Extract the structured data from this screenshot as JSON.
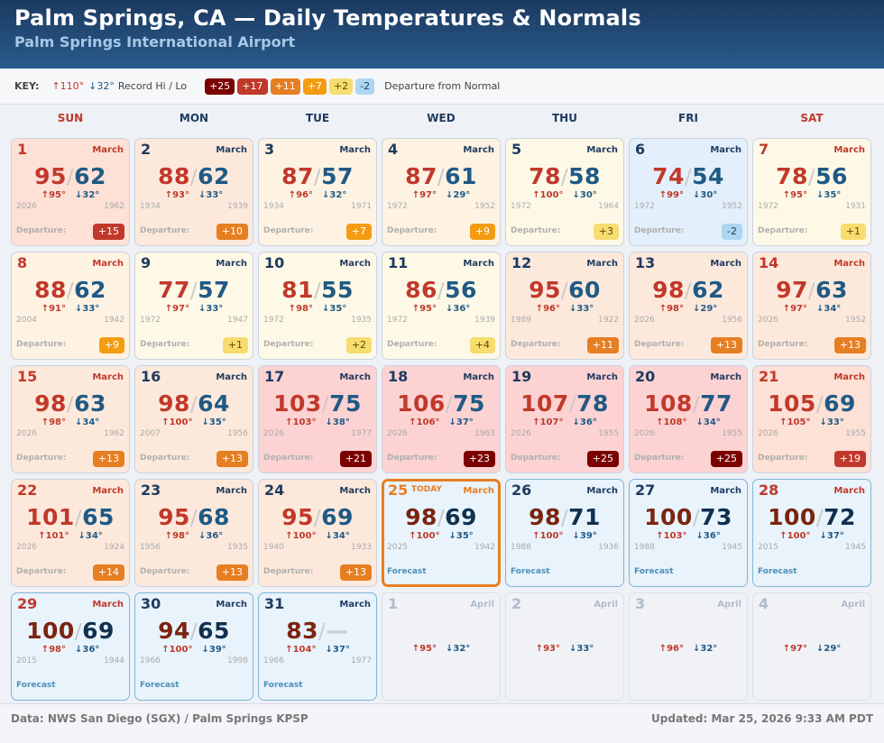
{
  "header": {
    "title": "Palm Springs, CA — Daily Temperatures & Normals",
    "subtitle": "Palm Springs International Airport"
  },
  "key": {
    "label": "KEY:",
    "record_hi": "↑110°",
    "record_lo": "↓32°",
    "record_text": "Record Hi / Lo",
    "departure_legend": [
      {
        "label": "+25",
        "bg": "#7b0000",
        "fg": "#ffffff"
      },
      {
        "label": "+17",
        "bg": "#c0392b",
        "fg": "#ffffff"
      },
      {
        "label": "+11",
        "bg": "#e67e22",
        "fg": "#ffffff"
      },
      {
        "label": "+7",
        "bg": "#f39c12",
        "fg": "#ffffff"
      },
      {
        "label": "+2",
        "bg": "#f7dc6f",
        "fg": "#5a4a00"
      },
      {
        "label": "-2",
        "bg": "#aed6f1",
        "fg": "#1e3a5f"
      }
    ],
    "departure_text": "Departure from Normal"
  },
  "weekdays": [
    "SUN",
    "MON",
    "TUE",
    "WED",
    "THU",
    "FRI",
    "SAT"
  ],
  "labels": {
    "departure": "Departure:",
    "forecast": "Forecast",
    "today": "TODAY"
  },
  "colors": {
    "accent_today": "#e67e22",
    "hi": "#c0392b",
    "lo": "#1f5a85"
  },
  "days": [
    {
      "day": "1",
      "month": "March",
      "hi": "95",
      "lo": "62",
      "rec_hi": "↑95°",
      "rec_lo": "↓32°",
      "yr_hi": "2026",
      "yr_lo": "1962",
      "dep": "+15",
      "dep_bg": "#c0392b",
      "dep_fg": "#ffffff",
      "bg": "#fde0d6",
      "type": "past"
    },
    {
      "day": "2",
      "month": "March",
      "hi": "88",
      "lo": "62",
      "rec_hi": "↑93°",
      "rec_lo": "↓33°",
      "yr_hi": "1934",
      "yr_lo": "1939",
      "dep": "+10",
      "dep_bg": "#e67e22",
      "dep_fg": "#ffffff",
      "bg": "#fde9dc",
      "type": "past"
    },
    {
      "day": "3",
      "month": "March",
      "hi": "87",
      "lo": "57",
      "rec_hi": "↑96°",
      "rec_lo": "↓32°",
      "yr_hi": "1934",
      "yr_lo": "1971",
      "dep": "+7",
      "dep_bg": "#f39c12",
      "dep_fg": "#ffffff",
      "bg": "#fef2e3",
      "type": "past"
    },
    {
      "day": "4",
      "month": "March",
      "hi": "87",
      "lo": "61",
      "rec_hi": "↑97°",
      "rec_lo": "↓29°",
      "yr_hi": "1972",
      "yr_lo": "1952",
      "dep": "+9",
      "dep_bg": "#f39c12",
      "dep_fg": "#ffffff",
      "bg": "#fef2e3",
      "type": "past"
    },
    {
      "day": "5",
      "month": "March",
      "hi": "78",
      "lo": "58",
      "rec_hi": "↑100°",
      "rec_lo": "↓30°",
      "yr_hi": "1972",
      "yr_lo": "1964",
      "dep": "+3",
      "dep_bg": "#f7dc6f",
      "dep_fg": "#5a4a00",
      "bg": "#fef9e7",
      "type": "past"
    },
    {
      "day": "6",
      "month": "March",
      "hi": "74",
      "lo": "54",
      "rec_hi": "↑99°",
      "rec_lo": "↓30°",
      "yr_hi": "1972",
      "yr_lo": "1952",
      "dep": "-2",
      "dep_bg": "#aed6f1",
      "dep_fg": "#1e3a5f",
      "bg": "#e3effb",
      "type": "past"
    },
    {
      "day": "7",
      "month": "March",
      "hi": "78",
      "lo": "56",
      "rec_hi": "↑95°",
      "rec_lo": "↓35°",
      "yr_hi": "1972",
      "yr_lo": "1931",
      "dep": "+1",
      "dep_bg": "#f7dc6f",
      "dep_fg": "#5a4a00",
      "bg": "#fef9e7",
      "type": "past"
    },
    {
      "day": "8",
      "month": "March",
      "hi": "88",
      "lo": "62",
      "rec_hi": "↑91°",
      "rec_lo": "↓33°",
      "yr_hi": "2004",
      "yr_lo": "1942",
      "dep": "+9",
      "dep_bg": "#f39c12",
      "dep_fg": "#ffffff",
      "bg": "#fef2e3",
      "type": "past"
    },
    {
      "day": "9",
      "month": "March",
      "hi": "77",
      "lo": "57",
      "rec_hi": "↑97°",
      "rec_lo": "↓33°",
      "yr_hi": "1972",
      "yr_lo": "1947",
      "dep": "+1",
      "dep_bg": "#f7dc6f",
      "dep_fg": "#5a4a00",
      "bg": "#fef9e7",
      "type": "past"
    },
    {
      "day": "10",
      "month": "March",
      "hi": "81",
      "lo": "55",
      "rec_hi": "↑98°",
      "rec_lo": "↓35°",
      "yr_hi": "1972",
      "yr_lo": "1935",
      "dep": "+2",
      "dep_bg": "#f7dc6f",
      "dep_fg": "#5a4a00",
      "bg": "#fef9e7",
      "type": "past"
    },
    {
      "day": "11",
      "month": "March",
      "hi": "86",
      "lo": "56",
      "rec_hi": "↑95°",
      "rec_lo": "↓36°",
      "yr_hi": "1972",
      "yr_lo": "1939",
      "dep": "+4",
      "dep_bg": "#f7dc6f",
      "dep_fg": "#5a4a00",
      "bg": "#fef9e7",
      "type": "past"
    },
    {
      "day": "12",
      "month": "March",
      "hi": "95",
      "lo": "60",
      "rec_hi": "↑96°",
      "rec_lo": "↓33°",
      "yr_hi": "1989",
      "yr_lo": "1922",
      "dep": "+11",
      "dep_bg": "#e67e22",
      "dep_fg": "#ffffff",
      "bg": "#fde9dc",
      "type": "past"
    },
    {
      "day": "13",
      "month": "March",
      "hi": "98",
      "lo": "62",
      "rec_hi": "↑98°",
      "rec_lo": "↓29°",
      "yr_hi": "2026",
      "yr_lo": "1956",
      "dep": "+13",
      "dep_bg": "#e67e22",
      "dep_fg": "#ffffff",
      "bg": "#fde9dc",
      "type": "past"
    },
    {
      "day": "14",
      "month": "March",
      "hi": "97",
      "lo": "63",
      "rec_hi": "↑97°",
      "rec_lo": "↓34°",
      "yr_hi": "2026",
      "yr_lo": "1952",
      "dep": "+13",
      "dep_bg": "#e67e22",
      "dep_fg": "#ffffff",
      "bg": "#fde9dc",
      "type": "past"
    },
    {
      "day": "15",
      "month": "March",
      "hi": "98",
      "lo": "63",
      "rec_hi": "↑98°",
      "rec_lo": "↓34°",
      "yr_hi": "2026",
      "yr_lo": "1962",
      "dep": "+13",
      "dep_bg": "#e67e22",
      "dep_fg": "#ffffff",
      "bg": "#fde9dc",
      "type": "past"
    },
    {
      "day": "16",
      "month": "March",
      "hi": "98",
      "lo": "64",
      "rec_hi": "↑100°",
      "rec_lo": "↓35°",
      "yr_hi": "2007",
      "yr_lo": "1956",
      "dep": "+13",
      "dep_bg": "#e67e22",
      "dep_fg": "#ffffff",
      "bg": "#fde9dc",
      "type": "past"
    },
    {
      "day": "17",
      "month": "March",
      "hi": "103",
      "lo": "75",
      "rec_hi": "↑103°",
      "rec_lo": "↓38°",
      "yr_hi": "2026",
      "yr_lo": "1977",
      "dep": "+21",
      "dep_bg": "#7b0000",
      "dep_fg": "#ffffff",
      "bg": "#fcd2d2",
      "type": "past"
    },
    {
      "day": "18",
      "month": "March",
      "hi": "106",
      "lo": "75",
      "rec_hi": "↑106°",
      "rec_lo": "↓37°",
      "yr_hi": "2026",
      "yr_lo": "1963",
      "dep": "+23",
      "dep_bg": "#7b0000",
      "dep_fg": "#ffffff",
      "bg": "#fcd2d2",
      "type": "past"
    },
    {
      "day": "19",
      "month": "March",
      "hi": "107",
      "lo": "78",
      "rec_hi": "↑107°",
      "rec_lo": "↓36°",
      "yr_hi": "2026",
      "yr_lo": "1955",
      "dep": "+25",
      "dep_bg": "#7b0000",
      "dep_fg": "#ffffff",
      "bg": "#fcd2d2",
      "type": "past"
    },
    {
      "day": "20",
      "month": "March",
      "hi": "108",
      "lo": "77",
      "rec_hi": "↑108°",
      "rec_lo": "↓34°",
      "yr_hi": "2026",
      "yr_lo": "1955",
      "dep": "+25",
      "dep_bg": "#7b0000",
      "dep_fg": "#ffffff",
      "bg": "#fcd2d2",
      "type": "past"
    },
    {
      "day": "21",
      "month": "March",
      "hi": "105",
      "lo": "69",
      "rec_hi": "↑105°",
      "rec_lo": "↓33°",
      "yr_hi": "2026",
      "yr_lo": "1955",
      "dep": "+19",
      "dep_bg": "#c0392b",
      "dep_fg": "#ffffff",
      "bg": "#fde0d6",
      "type": "past"
    },
    {
      "day": "22",
      "month": "March",
      "hi": "101",
      "lo": "65",
      "rec_hi": "↑101°",
      "rec_lo": "↓34°",
      "yr_hi": "2026",
      "yr_lo": "1924",
      "dep": "+14",
      "dep_bg": "#e67e22",
      "dep_fg": "#ffffff",
      "bg": "#fde9dc",
      "type": "past"
    },
    {
      "day": "23",
      "month": "March",
      "hi": "95",
      "lo": "68",
      "rec_hi": "↑98°",
      "rec_lo": "↓36°",
      "yr_hi": "1956",
      "yr_lo": "1935",
      "dep": "+13",
      "dep_bg": "#e67e22",
      "dep_fg": "#ffffff",
      "bg": "#fde9dc",
      "type": "past"
    },
    {
      "day": "24",
      "month": "March",
      "hi": "95",
      "lo": "69",
      "rec_hi": "↑100°",
      "rec_lo": "↓34°",
      "yr_hi": "1940",
      "yr_lo": "1933",
      "dep": "+13",
      "dep_bg": "#e67e22",
      "dep_fg": "#ffffff",
      "bg": "#fde9dc",
      "type": "past"
    },
    {
      "day": "25",
      "month": "March",
      "hi": "98",
      "lo": "69",
      "rec_hi": "↑100°",
      "rec_lo": "↓35°",
      "yr_hi": "2025",
      "yr_lo": "1942",
      "bg": "#e8f3fc",
      "type": "today"
    },
    {
      "day": "26",
      "month": "March",
      "hi": "98",
      "lo": "71",
      "rec_hi": "↑100°",
      "rec_lo": "↓39°",
      "yr_hi": "1988",
      "yr_lo": "1936",
      "bg": "#e8f3fc",
      "type": "forecast"
    },
    {
      "day": "27",
      "month": "March",
      "hi": "100",
      "lo": "73",
      "rec_hi": "↑103°",
      "rec_lo": "↓36°",
      "yr_hi": "1988",
      "yr_lo": "1945",
      "bg": "#e8f3fc",
      "type": "forecast"
    },
    {
      "day": "28",
      "month": "March",
      "hi": "100",
      "lo": "72",
      "rec_hi": "↑100°",
      "rec_lo": "↓37°",
      "yr_hi": "2015",
      "yr_lo": "1945",
      "bg": "#e8f3fc",
      "type": "forecast"
    },
    {
      "day": "29",
      "month": "March",
      "hi": "100",
      "lo": "69",
      "rec_hi": "↑98°",
      "rec_lo": "↓36°",
      "yr_hi": "2015",
      "yr_lo": "1944",
      "bg": "#e8f3fc",
      "type": "forecast"
    },
    {
      "day": "30",
      "month": "March",
      "hi": "94",
      "lo": "65",
      "rec_hi": "↑100°",
      "rec_lo": "↓39°",
      "yr_hi": "1966",
      "yr_lo": "1998",
      "bg": "#e8f3fc",
      "type": "forecast"
    },
    {
      "day": "31",
      "month": "March",
      "hi": "83",
      "lo": "—",
      "rec_hi": "↑104°",
      "rec_lo": "↓37°",
      "yr_hi": "1966",
      "yr_lo": "1977",
      "bg": "#e8f3fc",
      "type": "forecast"
    },
    {
      "day": "1",
      "month": "April",
      "rec_hi": "↑95°",
      "rec_lo": "↓32°",
      "type": "future"
    },
    {
      "day": "2",
      "month": "April",
      "rec_hi": "↑93°",
      "rec_lo": "↓33°",
      "type": "future"
    },
    {
      "day": "3",
      "month": "April",
      "rec_hi": "↑96°",
      "rec_lo": "↓32°",
      "type": "future"
    },
    {
      "day": "4",
      "month": "April",
      "rec_hi": "↑97°",
      "rec_lo": "↓29°",
      "type": "future"
    }
  ],
  "footer": {
    "source": "Data: NWS San Diego (SGX) / Palm Springs KPSP",
    "updated": "Updated: Mar 25, 2026 9:33 AM PDT"
  }
}
